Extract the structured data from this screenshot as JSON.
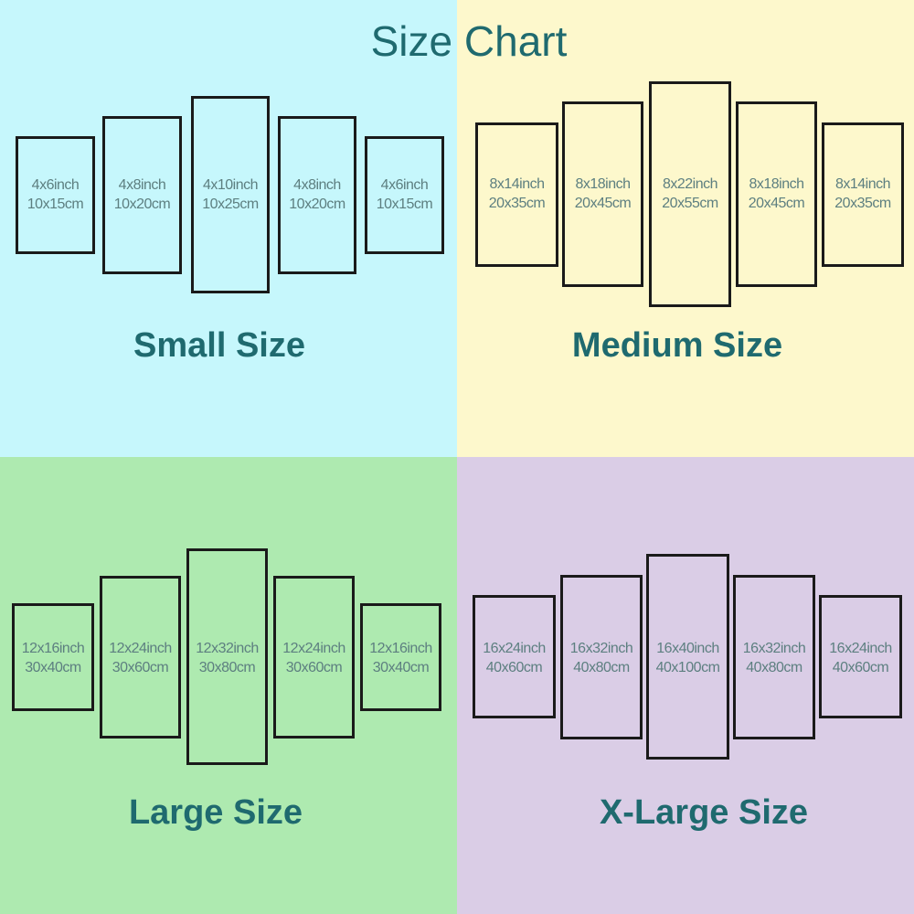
{
  "title": "Size Chart",
  "colors": {
    "small_bg": "#c6f7fc",
    "medium_bg": "#fdf8cc",
    "large_bg": "#aeeab0",
    "xlarge_bg": "#dacde6",
    "heading": "#1f6a6f",
    "panel_text": "#5d7f80",
    "panel_border": "#1a1a1a"
  },
  "sizes": [
    {
      "label": "Small Size",
      "panels": [
        {
          "inch": "4x6inch",
          "cm": "10x15cm"
        },
        {
          "inch": "4x8inch",
          "cm": "10x20cm"
        },
        {
          "inch": "4x10inch",
          "cm": "10x25cm"
        },
        {
          "inch": "4x8inch",
          "cm": "10x20cm"
        },
        {
          "inch": "4x6inch",
          "cm": "10x15cm"
        }
      ]
    },
    {
      "label": "Medium Size",
      "panels": [
        {
          "inch": "8x14inch",
          "cm": "20x35cm"
        },
        {
          "inch": "8x18inch",
          "cm": "20x45cm"
        },
        {
          "inch": "8x22inch",
          "cm": "20x55cm"
        },
        {
          "inch": "8x18inch",
          "cm": "20x45cm"
        },
        {
          "inch": "8x14inch",
          "cm": "20x35cm"
        }
      ]
    },
    {
      "label": "Large Size",
      "panels": [
        {
          "inch": "12x16inch",
          "cm": "30x40cm"
        },
        {
          "inch": "12x24inch",
          "cm": "30x60cm"
        },
        {
          "inch": "12x32inch",
          "cm": "30x80cm"
        },
        {
          "inch": "12x24inch",
          "cm": "30x60cm"
        },
        {
          "inch": "12x16inch",
          "cm": "30x40cm"
        }
      ]
    },
    {
      "label": "X-Large Size",
      "panels": [
        {
          "inch": "16x24inch",
          "cm": "40x60cm"
        },
        {
          "inch": "16x32inch",
          "cm": "40x80cm"
        },
        {
          "inch": "16x40inch",
          "cm": "40x100cm"
        },
        {
          "inch": "16x32inch",
          "cm": "40x80cm"
        },
        {
          "inch": "16x24inch",
          "cm": "40x60cm"
        }
      ]
    }
  ]
}
